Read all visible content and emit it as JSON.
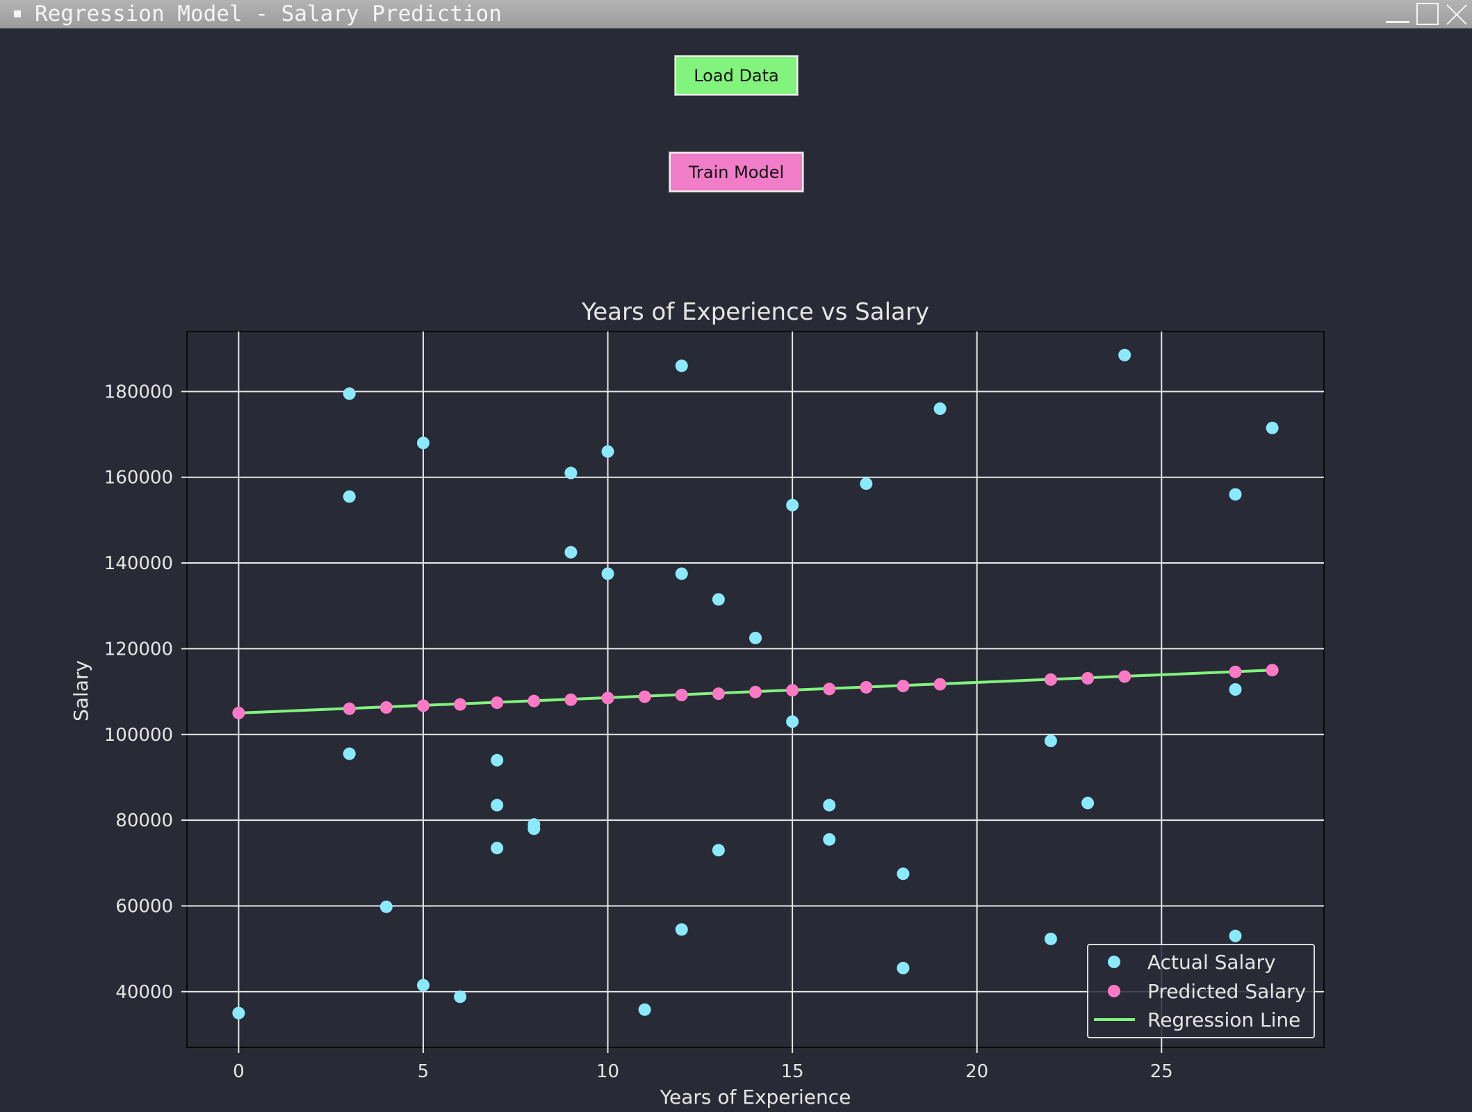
{
  "window": {
    "title": "Regression Model - Salary Prediction"
  },
  "buttons": {
    "load_label": "Load Data",
    "train_label": "Train Model"
  },
  "colors": {
    "background": "#282a36",
    "actual": "#8be9fd",
    "predicted": "#ff79c6",
    "line": "#82f37d",
    "load_button": "#82f37d",
    "train_button": "#f17cc7"
  },
  "chart_data": {
    "type": "scatter",
    "title": "Years of Experience vs Salary",
    "xlabel": "Years of Experience",
    "ylabel": "Salary",
    "xlim": [
      -1.4,
      29.4
    ],
    "ylim": [
      27000,
      194000
    ],
    "xticks": [
      0,
      5,
      10,
      15,
      20,
      25
    ],
    "yticks": [
      40000,
      60000,
      80000,
      100000,
      120000,
      140000,
      160000,
      180000
    ],
    "grid": true,
    "legend_position": "lower-right",
    "series": [
      {
        "name": "Actual Salary",
        "kind": "scatter",
        "color": "#8be9fd",
        "x": [
          0,
          3,
          3,
          3,
          4,
          5,
          5,
          6,
          7,
          7,
          7,
          8,
          8,
          9,
          9,
          10,
          10,
          11,
          12,
          12,
          12,
          13,
          13,
          14,
          15,
          15,
          16,
          16,
          17,
          18,
          18,
          19,
          22,
          22,
          23,
          24,
          27,
          27,
          27,
          28
        ],
        "y": [
          35000,
          179500,
          155500,
          95500,
          59800,
          168000,
          41500,
          38800,
          94000,
          83500,
          73500,
          79000,
          78000,
          161000,
          142500,
          166000,
          137500,
          35800,
          186000,
          137500,
          54500,
          131500,
          73000,
          122500,
          153500,
          103000,
          83500,
          75500,
          158500,
          67500,
          45500,
          176000,
          98500,
          52300,
          84000,
          188500,
          156000,
          110500,
          53000,
          171500
        ]
      },
      {
        "name": "Predicted Salary",
        "kind": "scatter",
        "color": "#ff79c6",
        "x": [
          0,
          3,
          4,
          5,
          6,
          7,
          8,
          9,
          10,
          11,
          12,
          13,
          14,
          15,
          16,
          17,
          18,
          19,
          22,
          23,
          24,
          27,
          28
        ],
        "y": [
          105000,
          106000,
          106300,
          106700,
          107000,
          107400,
          107800,
          108100,
          108500,
          108800,
          109200,
          109500,
          109900,
          110300,
          110600,
          111000,
          111300,
          111700,
          112800,
          113100,
          113500,
          114600,
          115000
        ]
      },
      {
        "name": "Regression Line",
        "kind": "line",
        "color": "#82f37d",
        "x": [
          0,
          28
        ],
        "y": [
          105000,
          115000
        ]
      }
    ]
  }
}
